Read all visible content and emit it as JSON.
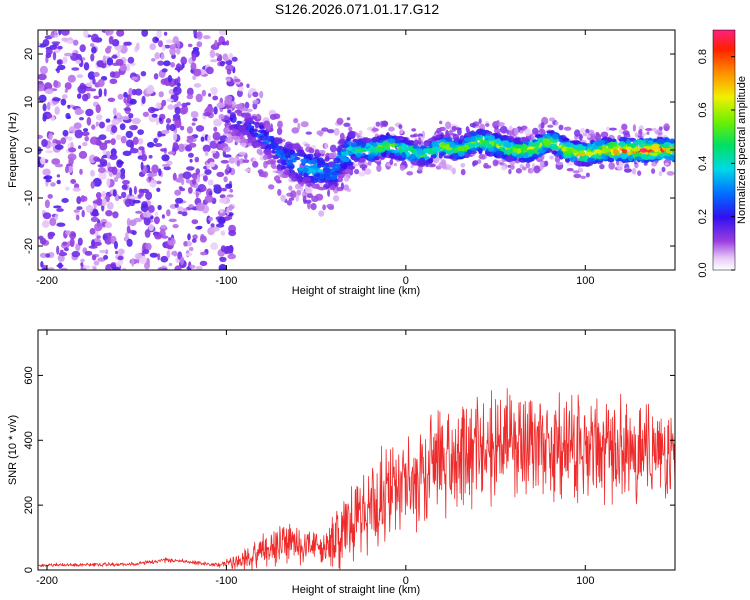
{
  "figure": {
    "title": "S126.2026.071.01.17.G12"
  },
  "colors": {
    "snr_line": "#ee2a2a",
    "axes": "#000000",
    "background": "#ffffff"
  },
  "chart_data": [
    {
      "type": "heatmap",
      "title": "S126.2026.071.01.17.G12",
      "xlabel": "Height of straight line (km)",
      "ylabel": "Frequency (Hz)",
      "xlim": [
        -205,
        150
      ],
      "ylim": [
        -25,
        25
      ],
      "xticks": [
        -200,
        -100,
        0,
        100
      ],
      "yticks": [
        20,
        10,
        0,
        -10,
        -20
      ],
      "colorbar": {
        "label": "Normalized spectral amplitude",
        "range": [
          0.0,
          0.9
        ],
        "ticks": [
          0.0,
          0.2,
          0.4,
          0.6,
          0.8
        ],
        "colormap": "rainbow"
      },
      "signal_trace": {
        "description": "frequency of peak spectral amplitude vs height",
        "height_km": [
          -100,
          -90,
          -80,
          -70,
          -60,
          -50,
          -40,
          -35,
          -30,
          -20,
          -10,
          0,
          10,
          20,
          30,
          40,
          50,
          60,
          70,
          80,
          90,
          100,
          110,
          120,
          130,
          140,
          150
        ],
        "frequency_hz": [
          7,
          5,
          3,
          -1,
          -3,
          -4,
          -5,
          -1,
          0,
          0,
          1,
          0,
          -1,
          1,
          0,
          2,
          1,
          0,
          0,
          2,
          0,
          -1,
          0,
          0,
          0,
          0,
          0
        ],
        "amplitude": [
          0.2,
          0.22,
          0.28,
          0.3,
          0.35,
          0.38,
          0.3,
          0.4,
          0.45,
          0.55,
          0.6,
          0.55,
          0.5,
          0.6,
          0.55,
          0.6,
          0.6,
          0.62,
          0.65,
          0.6,
          0.65,
          0.7,
          0.75,
          0.8,
          0.85,
          0.85,
          0.7
        ]
      }
    },
    {
      "type": "line",
      "title": "",
      "xlabel": "Height of straight line (km)",
      "ylabel": "SNR (10 * v/v)",
      "xlim": [
        -205,
        150
      ],
      "ylim": [
        0,
        740
      ],
      "xticks": [
        -200,
        -100,
        0,
        100
      ],
      "yticks": [
        0,
        200,
        400,
        600
      ],
      "series": [
        {
          "name": "SNR",
          "envelope": {
            "x": [
              -205,
              -150,
              -135,
              -120,
              -105,
              -95,
              -85,
              -75,
              -65,
              -55,
              -45,
              -35,
              -25,
              -15,
              -5,
              5,
              15,
              25,
              35,
              45,
              55,
              65,
              75,
              85,
              95,
              105,
              115,
              125,
              135,
              150
            ],
            "mean": [
              15,
              18,
              30,
              25,
              15,
              25,
              50,
              70,
              90,
              80,
              60,
              120,
              170,
              210,
              240,
              280,
              320,
              350,
              370,
              380,
              390,
              380,
              370,
              380,
              370,
              380,
              370,
              360,
              370,
              380
            ],
            "spread": [
              6,
              6,
              8,
              6,
              6,
              20,
              50,
              60,
              70,
              60,
              50,
              110,
              130,
              150,
              170,
              180,
              180,
              170,
              170,
              170,
              170,
              170,
              170,
              170,
              170,
              160,
              160,
              160,
              160,
              160
            ]
          }
        }
      ]
    }
  ]
}
